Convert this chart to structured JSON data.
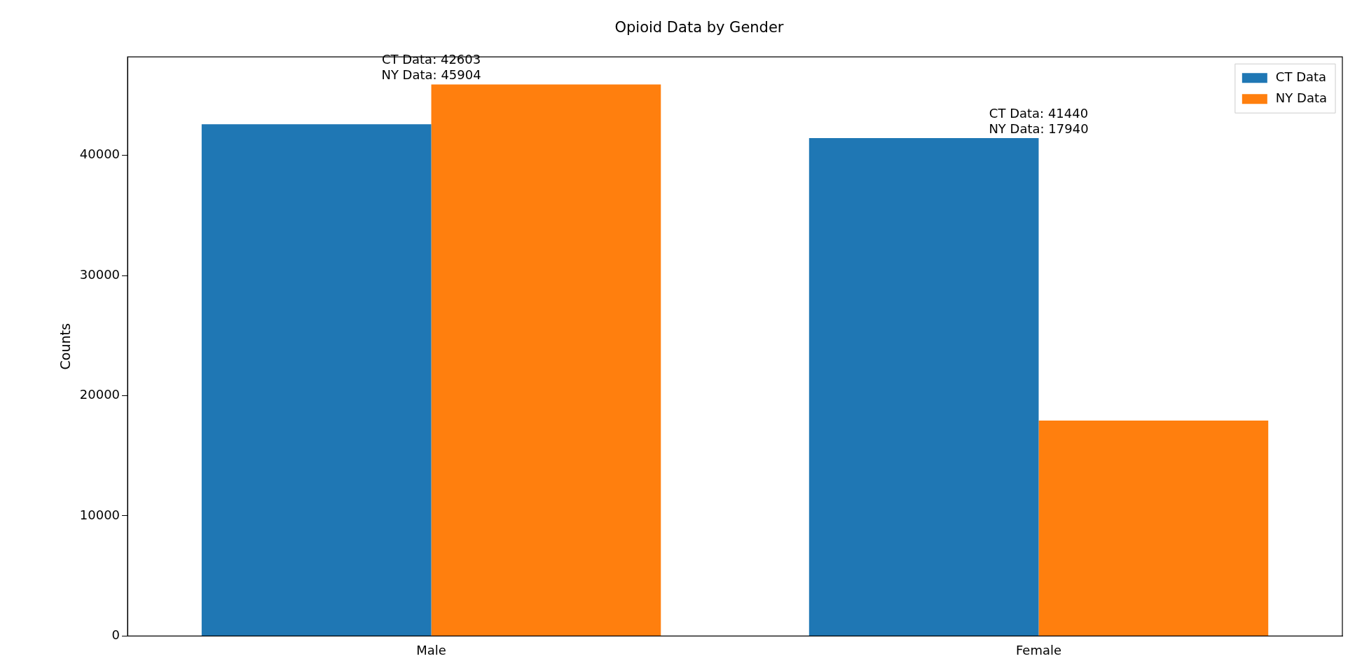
{
  "chart_data": {
    "type": "bar",
    "title": "Opioid Data by Gender",
    "ylabel": "Counts",
    "categories": [
      "Male",
      "Female"
    ],
    "series": [
      {
        "name": "CT Data",
        "color": "#1f77b4",
        "values": [
          42603,
          41440
        ]
      },
      {
        "name": "NY Data",
        "color": "#ff7f0e",
        "values": [
          45904,
          17940
        ]
      }
    ],
    "ylim": [
      0,
      48200
    ],
    "yticks": [
      0,
      10000,
      20000,
      30000,
      40000
    ],
    "grid": false,
    "legend": "top right",
    "annotations": [
      {
        "text": "CT Data: 42603",
        "x": "Male",
        "y": 45904
      },
      {
        "text": "NY Data: 45904",
        "x": "Male",
        "y": 45904
      },
      {
        "text": "CT Data: 41440",
        "x": "Female",
        "y": 41440
      },
      {
        "text": "NY Data: 17940",
        "x": "Female",
        "y": 41440
      }
    ]
  }
}
